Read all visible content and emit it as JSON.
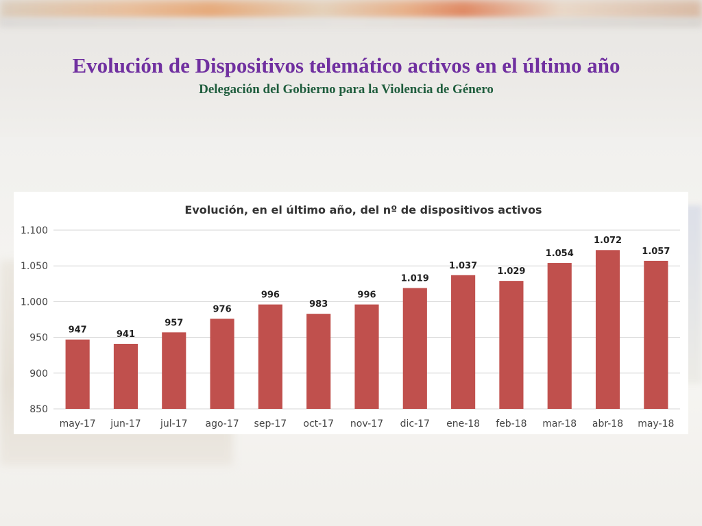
{
  "slide": {
    "title": "Evolución de Dispositivos telemático activos  en el último año",
    "subtitle": "Delegación del Gobierno para la Violencia de Género"
  },
  "colors": {
    "title": "#7030a0",
    "subtitle": "#1f5d3d",
    "bar": "#c0504d"
  },
  "chart_data": {
    "type": "bar",
    "title": "Evolución, en el último año, del nº de dispositivos activos",
    "categories": [
      "may-17",
      "jun-17",
      "jul-17",
      "ago-17",
      "sep-17",
      "oct-17",
      "nov-17",
      "dic-17",
      "ene-18",
      "feb-18",
      "mar-18",
      "abr-18",
      "may-18"
    ],
    "values": [
      947,
      941,
      957,
      976,
      996,
      983,
      996,
      1019,
      1037,
      1029,
      1054,
      1072,
      1057
    ],
    "data_labels": [
      "947",
      "941",
      "957",
      "976",
      "996",
      "983",
      "996",
      "1.019",
      "1.037",
      "1.029",
      "1.054",
      "1.072",
      "1.057"
    ],
    "yticks": [
      850,
      900,
      950,
      1000,
      1050,
      1100
    ],
    "ytick_labels": [
      "850",
      "900",
      "950",
      "1.000",
      "1.050",
      "1.100"
    ],
    "ylim": [
      850,
      1100
    ],
    "xlabel": "",
    "ylabel": "",
    "grid": true,
    "legend": false
  }
}
